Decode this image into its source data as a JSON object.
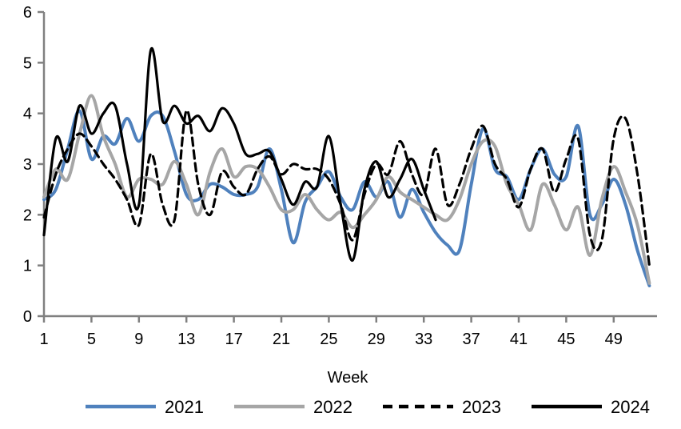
{
  "chart_data": {
    "type": "line",
    "title": "",
    "xlabel": "Week",
    "ylabel": "",
    "grid": false,
    "legend_position": "bottom",
    "axis": {
      "color": "#808080",
      "label_color": "#000000",
      "ylim": [
        0,
        6
      ],
      "xlim": [
        1,
        52
      ]
    },
    "y_ticks": [
      0,
      1,
      2,
      3,
      4,
      5,
      6
    ],
    "x_ticks": [
      1,
      5,
      9,
      13,
      17,
      21,
      25,
      29,
      33,
      37,
      41,
      45,
      49
    ],
    "x": [
      1,
      2,
      3,
      4,
      5,
      6,
      7,
      8,
      9,
      10,
      11,
      12,
      13,
      14,
      15,
      16,
      17,
      18,
      19,
      20,
      21,
      22,
      23,
      24,
      25,
      26,
      27,
      28,
      29,
      30,
      31,
      32,
      33,
      34,
      35,
      36,
      37,
      38,
      39,
      40,
      41,
      42,
      43,
      44,
      45,
      46,
      47,
      48,
      49,
      50,
      51,
      52
    ],
    "series": [
      {
        "name": "2021",
        "color": "#4F81BD",
        "style": "solid",
        "line_width": 4,
        "values": [
          2.3,
          2.5,
          3.3,
          4.05,
          3.1,
          3.55,
          3.4,
          3.9,
          3.45,
          3.95,
          3.95,
          3.25,
          2.4,
          2.3,
          2.6,
          2.55,
          2.4,
          2.4,
          2.55,
          3.3,
          2.5,
          1.45,
          2.25,
          2.55,
          2.85,
          2.35,
          2.1,
          2.65,
          2.35,
          2.65,
          1.95,
          2.5,
          2.05,
          1.65,
          1.4,
          1.3,
          2.6,
          3.7,
          2.9,
          2.75,
          2.3,
          2.9,
          3.3,
          2.8,
          2.75,
          3.75,
          2.0,
          2.2,
          2.7,
          2.2,
          1.3,
          0.6
        ]
      },
      {
        "name": "2022",
        "color": "#A6A6A6",
        "style": "solid",
        "line_width": 4,
        "values": [
          2.35,
          2.9,
          2.7,
          3.6,
          4.35,
          3.55,
          3.0,
          2.35,
          2.7,
          2.7,
          2.6,
          3.05,
          2.6,
          2.0,
          2.85,
          3.3,
          2.75,
          2.95,
          2.9,
          2.55,
          2.1,
          2.1,
          2.4,
          2.1,
          1.9,
          2.05,
          1.75,
          2.0,
          2.3,
          2.75,
          2.45,
          2.3,
          2.15,
          2.0,
          1.9,
          2.3,
          3.0,
          3.45,
          3.35,
          2.6,
          2.2,
          1.7,
          2.6,
          2.2,
          1.7,
          2.15,
          1.2,
          2.3,
          2.95,
          2.45,
          1.8,
          0.65
        ]
      },
      {
        "name": "2023",
        "color": "#000000",
        "style": "dashed",
        "line_width": 3.2,
        "values": [
          1.95,
          2.8,
          3.3,
          3.6,
          3.35,
          3.0,
          2.7,
          2.3,
          1.8,
          3.2,
          2.2,
          1.9,
          4.05,
          2.6,
          2.0,
          2.85,
          2.55,
          2.4,
          2.9,
          3.15,
          2.8,
          3.0,
          2.9,
          2.9,
          2.7,
          2.2,
          1.5,
          2.4,
          3.0,
          2.8,
          3.45,
          2.8,
          2.4,
          3.3,
          2.2,
          2.6,
          3.3,
          3.75,
          3.0,
          2.7,
          2.15,
          2.9,
          3.3,
          2.45,
          3.1,
          3.5,
          1.6,
          1.5,
          3.5,
          3.9,
          2.8,
          1.0
        ]
      },
      {
        "name": "2024",
        "color": "#000000",
        "style": "solid",
        "line_width": 3.2,
        "values": [
          1.6,
          3.5,
          3.05,
          4.15,
          3.6,
          4.0,
          4.15,
          3.0,
          2.2,
          5.25,
          3.85,
          4.15,
          3.8,
          3.95,
          3.65,
          4.1,
          3.8,
          3.2,
          3.2,
          3.25,
          2.7,
          2.2,
          2.65,
          2.55,
          3.55,
          2.2,
          1.1,
          2.5,
          3.05,
          2.35,
          2.7,
          3.1,
          2.5,
          1.9
        ]
      }
    ],
    "legend": {
      "items": [
        {
          "label": "2021",
          "color": "#4F81BD",
          "style": "solid"
        },
        {
          "label": "2022",
          "color": "#A6A6A6",
          "style": "solid"
        },
        {
          "label": "2023",
          "color": "#000000",
          "style": "dashed"
        },
        {
          "label": "2024",
          "color": "#000000",
          "style": "solid"
        }
      ]
    }
  }
}
